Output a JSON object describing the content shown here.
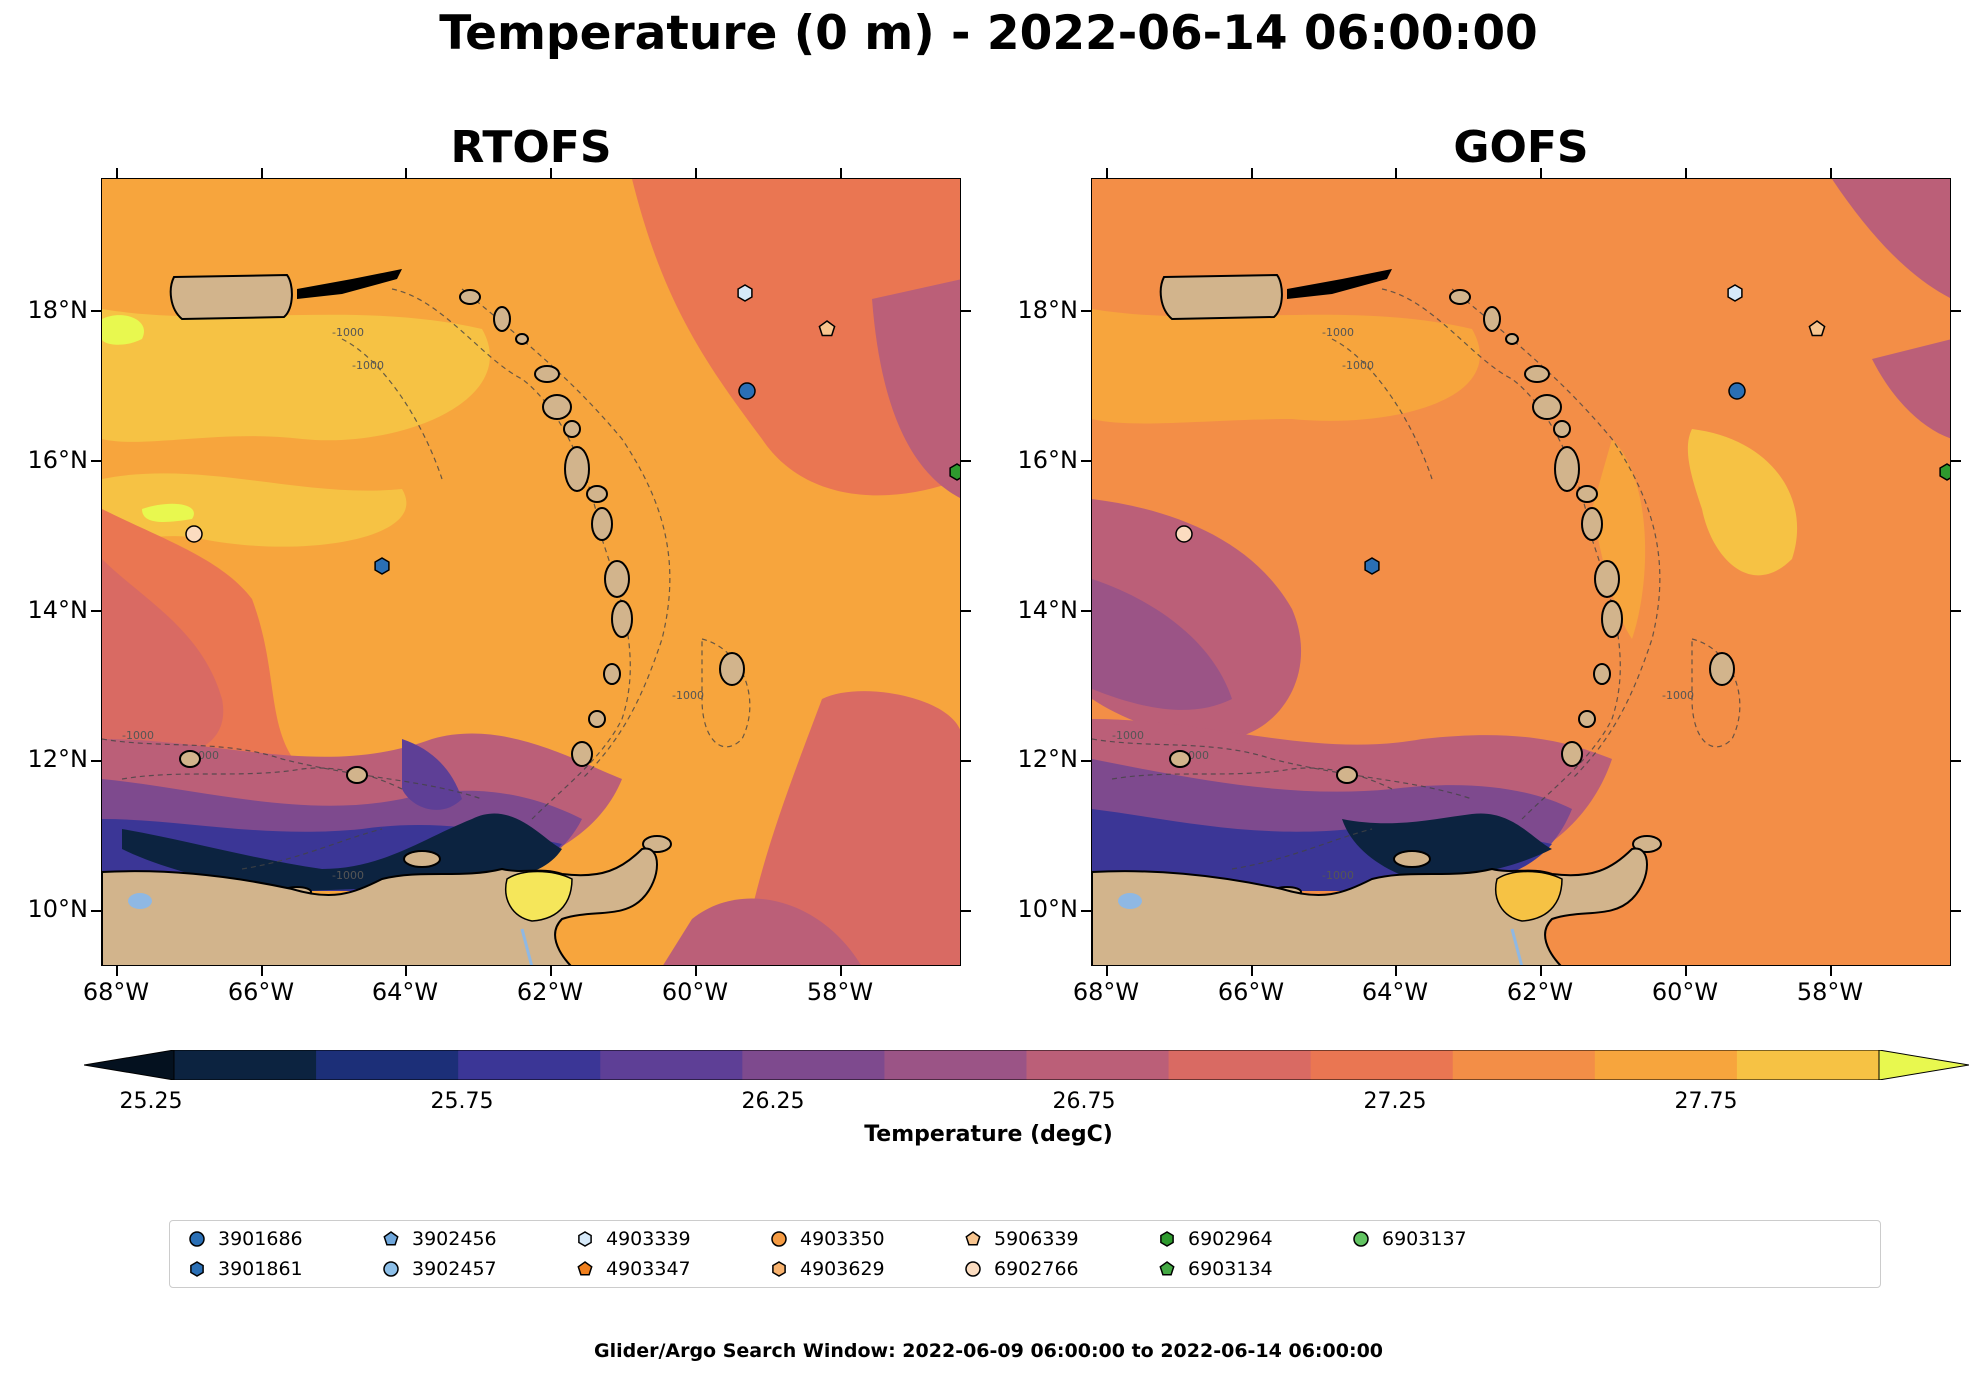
{
  "title": "Temperature (0 m) - 2022-06-14 06:00:00",
  "panels": [
    {
      "title": "RTOFS"
    },
    {
      "title": "GOFS"
    }
  ],
  "lat_labels": [
    "18°N",
    "16°N",
    "14°N",
    "12°N",
    "10°N"
  ],
  "lon_labels": [
    "68°W",
    "66°W",
    "64°W",
    "62°W",
    "60°W",
    "58°W"
  ],
  "contour_label": "-1000",
  "colorbar": {
    "label": "Temperature (degC)",
    "ticks": [
      "25.25",
      "25.75",
      "26.25",
      "26.75",
      "27.25",
      "27.75"
    ],
    "colors": [
      "#0c2340",
      "#1c2f78",
      "#3b3696",
      "#5e3f96",
      "#7e4a8e",
      "#9b5486",
      "#bb5f78",
      "#d96a63",
      "#ea7652",
      "#f38e47",
      "#f7a53d",
      "#f6c244"
    ],
    "extend_low_color": "#04111f",
    "extend_high_color": "#e8f84f"
  },
  "legend": {
    "items": [
      {
        "id": "3901686",
        "marker": "circle",
        "color": "#2a6fb5"
      },
      {
        "id": "3901861",
        "marker": "hexagon",
        "color": "#2a6fb5"
      },
      {
        "id": "3902456",
        "marker": "pentagon",
        "color": "#6fa7dc"
      },
      {
        "id": "3902457",
        "marker": "circle",
        "color": "#8dbfe8"
      },
      {
        "id": "4903339",
        "marker": "hexagon",
        "color": "#d6e9f9"
      },
      {
        "id": "4903347",
        "marker": "pentagon",
        "color": "#f07f1d"
      },
      {
        "id": "4903350",
        "marker": "circle",
        "color": "#f59b43"
      },
      {
        "id": "4903629",
        "marker": "hexagon",
        "color": "#f8b26e"
      },
      {
        "id": "5906339",
        "marker": "pentagon",
        "color": "#f8c58f"
      },
      {
        "id": "6902766",
        "marker": "circle",
        "color": "#fbdcc0"
      },
      {
        "id": "6902964",
        "marker": "hexagon",
        "color": "#2e9a2e"
      },
      {
        "id": "6903134",
        "marker": "pentagon",
        "color": "#43a843"
      },
      {
        "id": "6903137",
        "marker": "circle",
        "color": "#62c462"
      }
    ]
  },
  "footer": "Glider/Argo Search Window: 2022-06-09 06:00:00 to 2022-06-14 06:00:00",
  "colors": {
    "land": "#d2b48c",
    "lake": "#8fb8e3"
  }
}
